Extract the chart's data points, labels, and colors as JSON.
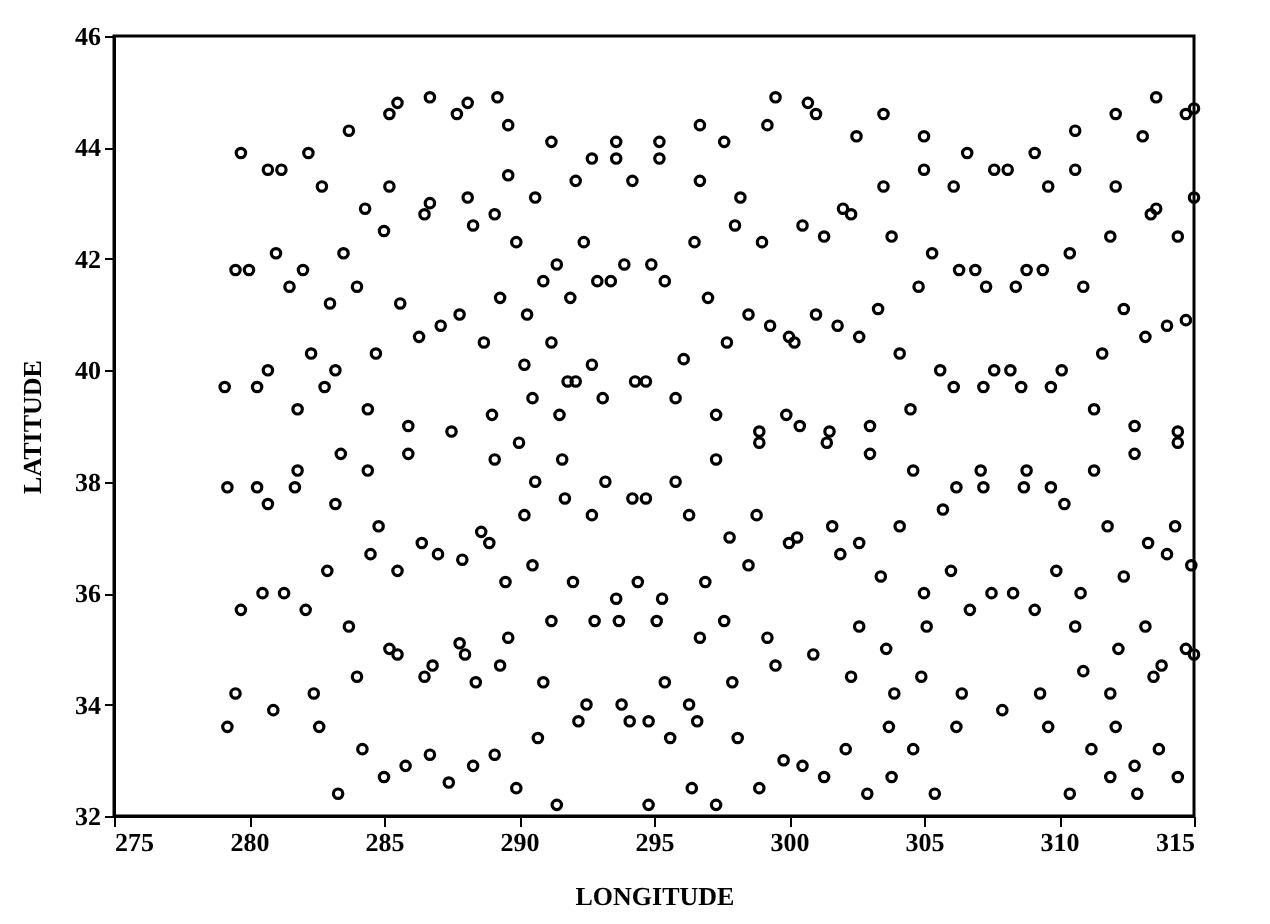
{
  "chart_data": {
    "type": "scatter",
    "xlabel": "LONGITUDE",
    "ylabel": "LATITUDE",
    "xlim": [
      275,
      315
    ],
    "xticks": [
      275,
      280,
      285,
      290,
      295,
      300,
      305,
      310,
      315
    ],
    "ylim": [
      32,
      46
    ],
    "yticks": [
      32,
      34,
      36,
      38,
      40,
      42,
      44,
      46
    ],
    "grid": false,
    "marker": "circle",
    "series": [
      {
        "color": "#000000",
        "x": [
          279.7,
          280.7,
          281.2,
          282.2,
          282.7,
          283.7,
          285.2,
          285.5,
          286.7,
          287.7,
          288.1,
          289.2,
          289.6,
          291.2,
          292.7,
          293.6,
          293.6,
          294.2,
          295.2,
          295.2,
          292.1,
          290.6,
          289.6,
          288.1,
          288.3,
          289.1,
          286.7,
          286.5,
          285.2,
          284.3,
          285.0,
          289.9,
          292.4,
          291.4,
          290.9,
          291.9,
          292.9,
          293.4,
          293.9,
          294.9,
          295.4,
          289.3,
          290.3,
          291.2,
          290.2,
          288.7,
          287.8,
          287.1,
          286.3,
          285.6,
          284.0,
          283.0,
          281.5,
          282.0,
          281.0,
          279.5,
          280.0,
          283.5,
          284.7,
          282.3,
          280.7,
          283.2,
          282.8,
          280.3,
          279.1,
          281.8,
          284.4,
          285.9,
          287.5,
          289.0,
          290.5,
          291.5,
          291.8,
          292.1,
          292.7,
          293.1,
          294.3,
          294.7,
          295.8,
          296.7,
          296.7,
          297.6,
          298.2,
          298.0,
          296.5,
          299.0,
          299.2,
          299.5,
          300.7,
          301.0,
          300.5,
          301.3,
          302.0,
          302.3,
          302.5,
          303.5,
          303.5,
          303.8,
          305.0,
          305.0,
          306.1,
          306.6,
          307.6,
          308.1,
          309.1,
          309.6,
          310.6,
          310.6,
          312.1,
          313.1,
          313.6,
          314.7,
          315.0,
          312.1,
          311.9,
          313.4,
          313.6,
          314.4,
          315.0,
          305.3,
          304.8,
          306.3,
          306.9,
          307.3,
          308.4,
          308.8,
          309.4,
          310.4,
          310.9,
          312.4,
          313.2,
          314.0,
          314.7,
          297.0,
          298.5,
          299.3,
          300.0,
          300.2,
          297.7,
          301.0,
          301.8,
          302.6,
          303.3,
          304.1,
          296.1,
          297.3,
          298.9,
          299.9,
          300.4,
          301.5,
          303.0,
          304.5,
          305.6,
          306.1,
          307.2,
          307.6,
          308.2,
          308.6,
          309.7,
          310.1,
          311.6,
          311.3,
          312.8,
          314.4,
          283.4,
          285.9,
          284.4,
          281.8,
          279.2,
          280.3,
          280.7,
          281.7,
          283.2,
          284.8,
          284.5,
          286.4,
          287.0,
          287.9,
          288.6,
          288.9,
          289.1,
          290.0,
          291.6,
          291.7,
          290.6,
          292.7,
          290.2,
          290.5,
          289.5,
          292.0,
          293.2,
          294.2,
          294.7,
          294.4,
          295.8,
          295.3,
          293.6,
          292.8,
          293.7,
          295.1,
          291.2,
          282.9,
          285.5,
          280.5,
          281.3,
          279.7,
          282.1,
          283.7,
          285.2,
          285.5,
          286.5,
          286.8,
          287.8,
          288.0,
          289.6,
          289.3,
          288.4,
          290.9,
          292.5,
          293.8,
          292.2,
          294.1,
          294.8,
          295.4,
          295.6,
          290.7,
          279.5,
          282.4,
          284.0,
          279.2,
          280.9,
          282.6,
          284.2,
          285.0,
          285.8,
          286.7,
          287.4,
          288.3,
          289.1,
          289.9,
          283.3,
          291.4,
          294.8,
          297.3,
          296.3,
          296.9,
          296.7,
          297.6,
          297.8,
          298.5,
          298.8,
          298.9,
          301.4,
          303.0,
          300.0,
          300.3,
          301.6,
          301.9,
          302.6,
          303.4,
          304.1,
          304.6,
          305.7,
          306.2,
          307.1,
          307.2,
          308.8,
          308.7,
          309.7,
          310.2,
          311.3,
          311.8,
          312.8,
          314.4,
          314.3,
          313.3,
          314.0,
          314.9,
          312.4,
          309.9,
          310.8,
          309.1,
          308.3,
          307.5,
          306.7,
          306.0,
          305.0,
          305.1,
          302.6,
          303.6,
          299.2,
          300.9,
          299.5,
          302.3,
          303.9,
          304.9,
          306.4,
          310.6,
          310.9,
          309.3,
          311.9,
          313.2,
          312.2,
          313.5,
          313.8,
          314.7,
          315.0,
          297.9,
          296.3,
          296.6,
          298.1,
          296.4,
          298.9,
          299.8,
          300.5,
          301.3,
          302.1,
          302.9,
          303.8,
          303.7,
          304.6,
          305.4,
          306.2,
          307.9,
          309.6,
          310.4,
          311.2,
          311.9,
          312.1,
          312.8,
          312.9,
          313.7,
          314.4,
          297.3
        ],
        "values": [
          43.9,
          43.6,
          43.6,
          43.9,
          43.3,
          44.3,
          44.6,
          44.8,
          44.9,
          44.6,
          44.8,
          44.9,
          44.4,
          44.1,
          43.8,
          44.1,
          43.8,
          43.4,
          44.1,
          43.8,
          43.4,
          43.1,
          43.5,
          43.1,
          42.6,
          42.8,
          43.0,
          42.8,
          43.3,
          42.9,
          42.5,
          42.3,
          42.3,
          41.9,
          41.6,
          41.3,
          41.6,
          41.6,
          41.9,
          41.9,
          41.6,
          41.3,
          41.0,
          40.5,
          40.1,
          40.5,
          41.0,
          40.8,
          40.6,
          41.2,
          41.5,
          41.2,
          41.5,
          41.8,
          42.1,
          41.8,
          41.8,
          42.1,
          40.3,
          40.3,
          40.0,
          40.0,
          39.7,
          39.7,
          39.7,
          39.3,
          39.3,
          39.0,
          38.9,
          39.2,
          39.5,
          39.2,
          39.8,
          39.8,
          40.1,
          39.5,
          39.8,
          39.8,
          39.5,
          44.4,
          43.4,
          44.1,
          43.1,
          42.6,
          42.3,
          42.3,
          44.4,
          44.9,
          44.8,
          44.6,
          42.6,
          42.4,
          42.9,
          42.8,
          44.2,
          44.6,
          43.3,
          42.4,
          44.2,
          43.6,
          43.3,
          43.9,
          43.6,
          43.6,
          43.9,
          43.3,
          44.3,
          43.6,
          44.6,
          44.2,
          44.9,
          44.6,
          44.7,
          43.3,
          42.4,
          42.8,
          42.9,
          42.4,
          43.1,
          42.1,
          41.5,
          41.8,
          41.8,
          41.5,
          41.5,
          41.8,
          41.8,
          42.1,
          41.5,
          41.1,
          40.6,
          40.8,
          40.9,
          41.3,
          41.0,
          40.8,
          40.6,
          40.5,
          40.5,
          41.0,
          40.8,
          40.6,
          41.1,
          40.3,
          40.2,
          39.2,
          38.9,
          39.2,
          39.0,
          38.9,
          39.0,
          39.3,
          40.0,
          39.7,
          39.7,
          40.0,
          40.0,
          39.7,
          39.7,
          40.0,
          40.3,
          39.3,
          39.0,
          38.9,
          38.5,
          38.5,
          38.2,
          38.2,
          37.9,
          37.9,
          37.6,
          37.9,
          37.6,
          37.2,
          36.7,
          36.9,
          36.7,
          36.6,
          37.1,
          36.9,
          38.4,
          38.7,
          38.4,
          37.7,
          38.0,
          37.4,
          37.4,
          36.5,
          36.2,
          36.2,
          38.0,
          37.7,
          37.7,
          36.2,
          38.0,
          35.9,
          35.9,
          35.5,
          35.5,
          35.5,
          35.5,
          36.4,
          36.4,
          36.0,
          36.0,
          35.7,
          35.7,
          35.4,
          35.0,
          34.9,
          34.5,
          34.7,
          35.1,
          34.9,
          35.2,
          34.7,
          34.4,
          34.4,
          34.0,
          34.0,
          33.7,
          33.7,
          33.7,
          34.4,
          33.4,
          33.4,
          34.2,
          34.2,
          34.5,
          33.6,
          33.9,
          33.6,
          33.2,
          32.7,
          32.9,
          33.1,
          32.6,
          32.9,
          33.1,
          32.5,
          32.4,
          32.2,
          32.2,
          38.4,
          37.4,
          36.2,
          35.2,
          35.5,
          37.0,
          36.5,
          37.4,
          38.7,
          38.7,
          38.5,
          36.9,
          37.0,
          37.2,
          36.7,
          36.9,
          36.3,
          37.2,
          38.2,
          37.5,
          37.9,
          38.2,
          37.9,
          38.2,
          37.9,
          37.9,
          37.6,
          38.2,
          37.2,
          38.5,
          38.7,
          37.2,
          36.9,
          36.7,
          36.5,
          36.3,
          36.4,
          36.0,
          35.7,
          36.0,
          36.0,
          35.7,
          36.4,
          36.0,
          35.4,
          35.4,
          35.0,
          35.2,
          34.9,
          34.7,
          34.5,
          34.2,
          34.5,
          34.2,
          35.4,
          34.6,
          34.2,
          34.2,
          35.4,
          35.0,
          34.5,
          34.7,
          35.0,
          34.9,
          34.4,
          34.0,
          33.7,
          33.4,
          32.5,
          32.5,
          33.0,
          32.9,
          32.7,
          33.2,
          32.4,
          32.7,
          33.6,
          33.2,
          32.4,
          33.6,
          33.9,
          33.6,
          32.4,
          33.2,
          32.7,
          33.6,
          32.9,
          32.4,
          33.2,
          32.7,
          32.2
        ]
      }
    ]
  }
}
